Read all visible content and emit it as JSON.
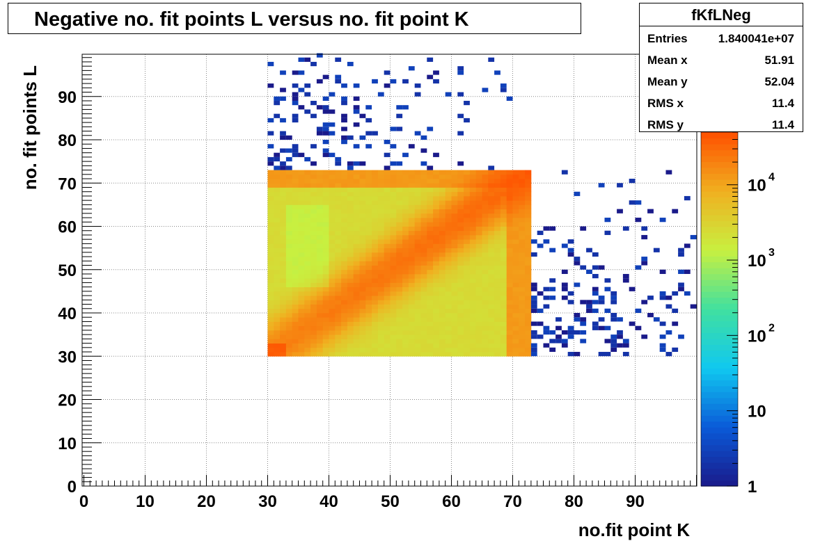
{
  "title": "Negative no. fit points L versus no. fit point K",
  "stats": {
    "name": "fKfLNeg",
    "rows": [
      {
        "label": "Entries",
        "value": "1.840041e+07"
      },
      {
        "label": "Mean x",
        "value": "51.91"
      },
      {
        "label": "Mean y",
        "value": "52.04"
      },
      {
        "label": "RMS x",
        "value": "11.4"
      },
      {
        "label": "RMS y",
        "value": "11.4"
      }
    ]
  },
  "chart_data": {
    "type": "heatmap",
    "title": "Negative no. fit points L versus no. fit point K",
    "xlabel": "no.fit point K",
    "ylabel": "no. fit points  L",
    "xlim": [
      0,
      100
    ],
    "ylim": [
      0,
      100
    ],
    "x_ticks": [
      "0",
      "10",
      "20",
      "30",
      "40",
      "50",
      "60",
      "70",
      "80",
      "90"
    ],
    "y_ticks": [
      "0",
      "10",
      "20",
      "30",
      "40",
      "50",
      "60",
      "70",
      "80",
      "90"
    ],
    "grid": true,
    "z_scale": "log",
    "z_range": [
      1,
      50000
    ],
    "z_tick_labels": [
      {
        "base": "1",
        "exp": ""
      },
      {
        "base": "10",
        "exp": ""
      },
      {
        "base": "10",
        "exp": "2"
      },
      {
        "base": "10",
        "exp": "3"
      },
      {
        "base": "10",
        "exp": "4"
      }
    ],
    "dense_region": {
      "x_range": [
        30,
        73
      ],
      "y_range": [
        30,
        73
      ],
      "diagonal_peak": 30000,
      "edge_peak": 40000,
      "background": 2500
    },
    "sparse_regions": [
      {
        "x_range": [
          30,
          73
        ],
        "y_range": [
          73,
          100
        ],
        "max_count": 3
      },
      {
        "x_range": [
          73,
          100
        ],
        "y_range": [
          30,
          73
        ],
        "max_count": 3
      }
    ],
    "colormap": [
      "#1a1a8a",
      "#0a5ad8",
      "#10c8f0",
      "#40e0a0",
      "#c8f040",
      "#f0b020",
      "#ff5000"
    ]
  }
}
